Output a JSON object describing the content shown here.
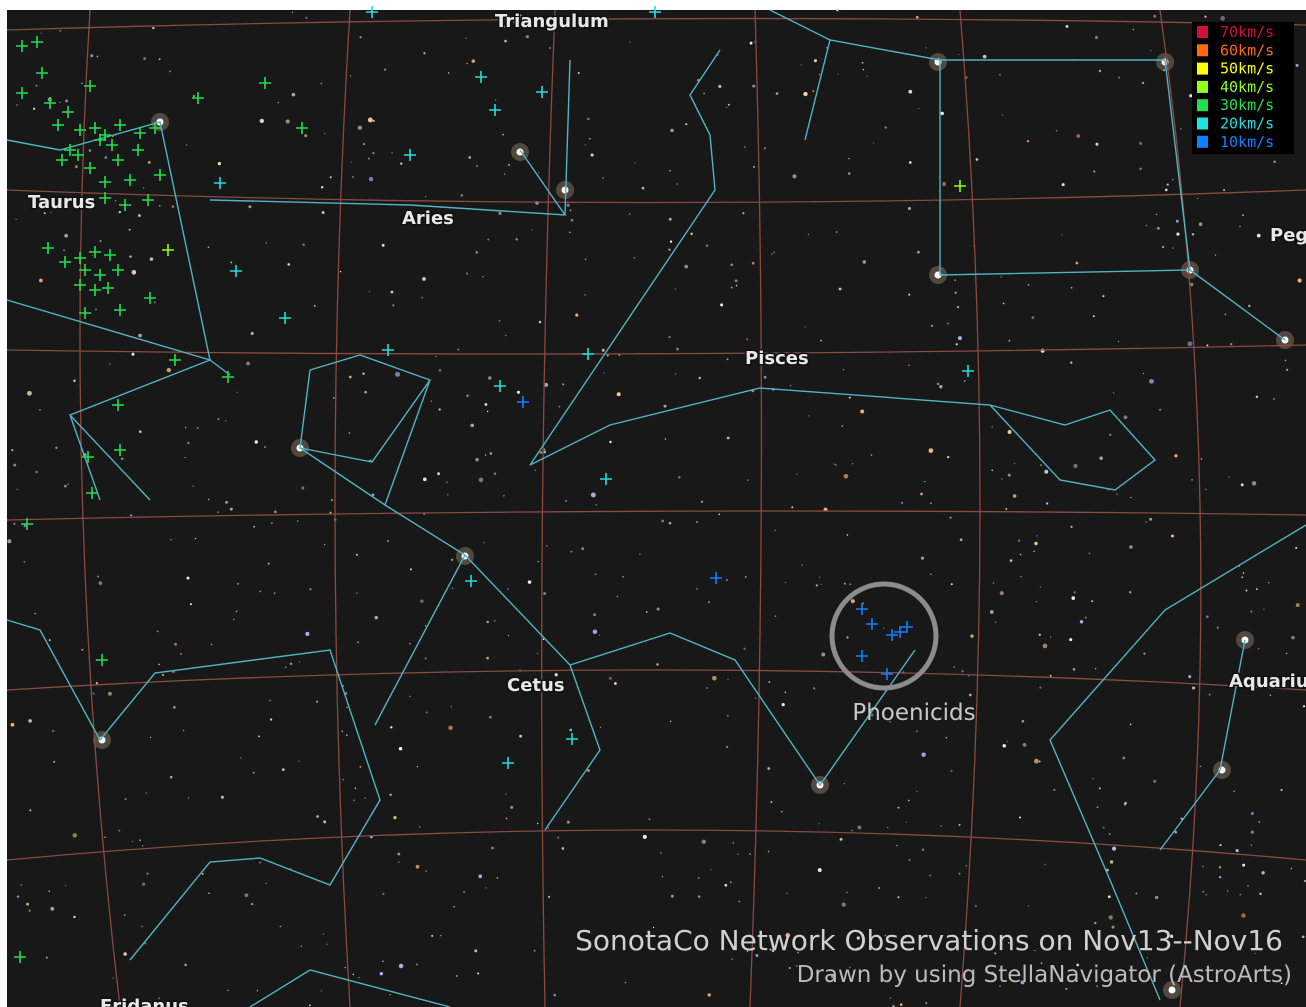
{
  "constellations": [
    "Triangulum",
    "Taurus",
    "Aries",
    "Pisces",
    "Cetus",
    "Aquariu",
    "Peg",
    "Eridanus"
  ],
  "shower": {
    "label": "Phoenicids"
  },
  "legend": [
    {
      "label": "70km/s",
      "color": "#d0103c"
    },
    {
      "label": "60km/s",
      "color": "#ff6a10"
    },
    {
      "label": "50km/s",
      "color": "#ffff00"
    },
    {
      "label": "40km/s",
      "color": "#90ff20"
    },
    {
      "label": "30km/s",
      "color": "#20e050"
    },
    {
      "label": "20km/s",
      "color": "#20e0e0"
    },
    {
      "label": "10km/s",
      "color": "#1080ff"
    }
  ],
  "credits": {
    "title": "SonotaCo Network Observations on Nov13--Nov16",
    "subtitle": "Drawn by using StellaNavigator (AstroArts)"
  }
}
